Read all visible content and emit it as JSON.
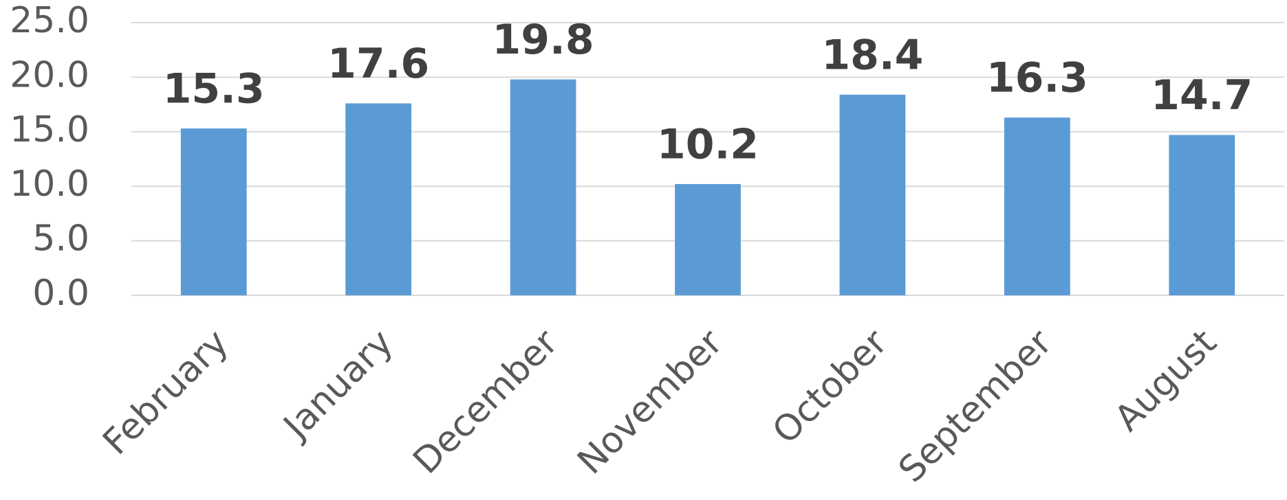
{
  "chart_data": {
    "type": "bar",
    "categories": [
      "February",
      "January",
      "December",
      "November",
      "October",
      "September",
      "August"
    ],
    "values": [
      15.3,
      17.6,
      19.8,
      10.2,
      18.4,
      16.3,
      14.7
    ],
    "color": "#5b9bd5",
    "ylim": [
      0,
      25
    ],
    "yticks": [
      {
        "value": 0,
        "label": "0.0"
      },
      {
        "value": 5,
        "label": "5.0"
      },
      {
        "value": 10,
        "label": "10.0"
      },
      {
        "value": 15,
        "label": "15.0"
      },
      {
        "value": 20,
        "label": "20.0"
      },
      {
        "value": 25,
        "label": "25.0"
      }
    ],
    "grid": true
  }
}
